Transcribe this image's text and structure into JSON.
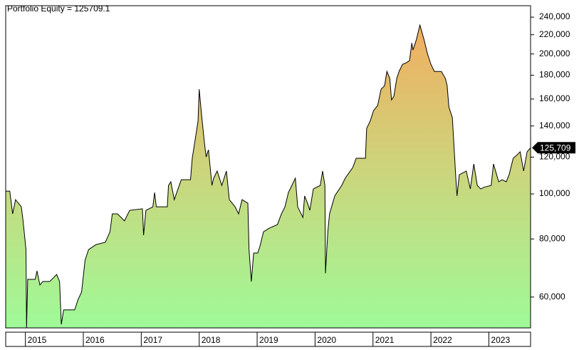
{
  "chart_data": {
    "type": "area",
    "title": "Portfolio Equity = 125709.1",
    "x": [
      2014.66,
      2014.73,
      2014.78,
      2014.83,
      2014.88,
      2014.93,
      2014.96,
      2015.01,
      2015.02,
      2015.04,
      2015.17,
      2015.2,
      2015.25,
      2015.3,
      2015.42,
      2015.54,
      2015.59,
      2015.62,
      2015.66,
      2015.85,
      2015.91,
      2015.97,
      2016.03,
      2016.09,
      2016.22,
      2016.38,
      2016.46,
      2016.5,
      2016.59,
      2016.71,
      2016.8,
      2017.02,
      2017.04,
      2017.08,
      2017.2,
      2017.23,
      2017.26,
      2017.45,
      2017.47,
      2017.51,
      2017.57,
      2017.69,
      2017.85,
      2017.88,
      2017.98,
      2018.0,
      2018.04,
      2018.09,
      2018.12,
      2018.16,
      2018.22,
      2018.25,
      2018.31,
      2018.39,
      2018.47,
      2018.52,
      2018.62,
      2018.68,
      2018.74,
      2018.84,
      2018.86,
      2018.9,
      2018.94,
      2019.01,
      2019.05,
      2019.11,
      2019.21,
      2019.35,
      2019.42,
      2019.48,
      2019.54,
      2019.6,
      2019.66,
      2019.7,
      2019.79,
      2019.82,
      2019.87,
      2019.91,
      2019.97,
      2020.09,
      2020.13,
      2020.17,
      2020.18,
      2020.22,
      2020.25,
      2020.34,
      2020.46,
      2020.52,
      2020.65,
      2020.71,
      2020.87,
      2020.89,
      2020.95,
      2021.01,
      2021.08,
      2021.14,
      2021.2,
      2021.24,
      2021.29,
      2021.32,
      2021.36,
      2021.41,
      2021.45,
      2021.51,
      2021.57,
      2021.63,
      2021.67,
      2021.69,
      2021.75,
      2021.81,
      2021.88,
      2021.94,
      2022.0,
      2022.06,
      2022.18,
      2022.25,
      2022.28,
      2022.31,
      2022.37,
      2022.43,
      2022.45,
      2022.49,
      2022.61,
      2022.68,
      2022.74,
      2022.8,
      2022.86,
      2022.92,
      2023.04,
      2023.08,
      2023.17,
      2023.23,
      2023.3,
      2023.35,
      2023.42,
      2023.48,
      2023.54,
      2023.6,
      2023.66,
      2023.72
    ],
    "values": [
      101400,
      101400,
      90600,
      97200,
      95500,
      93800,
      87500,
      75900,
      51500,
      65500,
      65500,
      68300,
      63700,
      64800,
      64800,
      67100,
      64800,
      52400,
      56300,
      56300,
      59300,
      61500,
      72000,
      75900,
      77800,
      78700,
      82900,
      90600,
      90600,
      87500,
      92200,
      92900,
      81500,
      92200,
      93800,
      100700,
      93800,
      93800,
      104300,
      106200,
      97200,
      107300,
      107300,
      119300,
      143300,
      168000,
      148400,
      128900,
      120100,
      124400,
      104300,
      108100,
      112000,
      104300,
      112000,
      97200,
      93800,
      90600,
      97200,
      95500,
      75900,
      64800,
      74600,
      74600,
      77300,
      82900,
      84400,
      85900,
      90600,
      93800,
      100700,
      104300,
      108100,
      93800,
      89000,
      99000,
      95500,
      92200,
      102500,
      104300,
      112000,
      104300,
      67500,
      82900,
      90600,
      99000,
      104300,
      108100,
      113900,
      119300,
      119300,
      138300,
      143300,
      151100,
      154900,
      168000,
      170900,
      183400,
      177100,
      159300,
      162100,
      177100,
      183400,
      190000,
      191400,
      193400,
      211200,
      203900,
      215000,
      230700,
      215000,
      200300,
      190000,
      183400,
      183400,
      177100,
      170900,
      153800,
      145900,
      108100,
      99000,
      110000,
      112000,
      102500,
      116000,
      104300,
      102500,
      103400,
      104300,
      116000,
      106200,
      107300,
      106200,
      110000,
      119300,
      121100,
      123200,
      112000,
      123200,
      125709
    ],
    "value_label": "125,709",
    "color": "#000000",
    "xlim": [
      2014.66,
      2023.72
    ],
    "xticks": [
      2015,
      2016,
      2017,
      2018,
      2019,
      2020,
      2021,
      2022,
      2023
    ],
    "ylim": [
      51500,
      254000
    ],
    "log_scale": true,
    "yticks": [
      {
        "value": 60000,
        "label": "60,000"
      },
      {
        "value": 80000,
        "label": "80,000"
      },
      {
        "value": 100000,
        "label": "100,000"
      },
      {
        "value": 120000,
        "label": "120,000"
      },
      {
        "value": 140000,
        "label": "140,000"
      },
      {
        "value": 160000,
        "label": "160,000"
      },
      {
        "value": 180000,
        "label": "180,000"
      },
      {
        "value": 200000,
        "label": "200,000"
      },
      {
        "value": 220000,
        "label": "220,000"
      },
      {
        "value": 240000,
        "label": "240,000"
      }
    ],
    "grid": false
  }
}
